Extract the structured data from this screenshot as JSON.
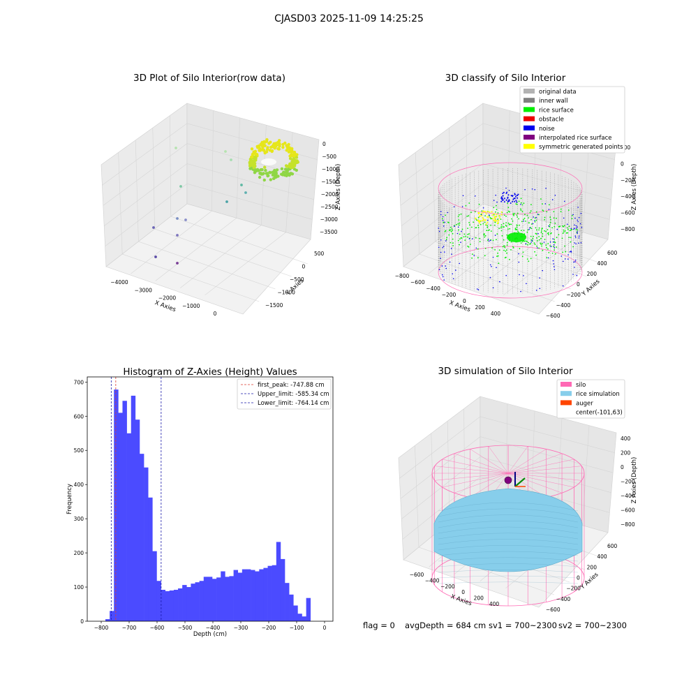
{
  "figure": {
    "title": "CJASD03 2025-11-09 14:25:25",
    "footer": {
      "flag": "flag = 0",
      "avg_depth": "avgDepth = 684 cm",
      "sv1": "sv1 = 700~2300",
      "sv2": "sv2 = 700~2300"
    }
  },
  "colors": {
    "histogram": "#4b4bff",
    "first_peak": "#dd3b2f",
    "limit_lines": "#1a1aaa",
    "original": "#b3b3b3",
    "inner_wall": "#808080",
    "rice_surface": "#00ee00",
    "obstacle": "#ee0000",
    "noise": "#0000ee",
    "interpolated": "#800080",
    "symmetric": "#ffff00",
    "silo": "#ff69b4",
    "rice_sim": "#87ceeb",
    "auger": "#ff4500"
  },
  "chart_data": [
    {
      "type": "scatter",
      "title": "3D Plot of Silo Interior(row data)",
      "xlabel": "X Axies",
      "ylabel": "Y Axies",
      "zlabel": "Z Axies (Depth)",
      "x_ticks": [
        "−4000",
        "−3000",
        "−2000",
        "−1000",
        "0"
      ],
      "y_ticks": [
        "500",
        "0",
        "−500",
        "−1000",
        "−1500"
      ],
      "z_ticks": [
        "0",
        "−500",
        "−1000",
        "−1500",
        "−2000",
        "−2500",
        "−3000",
        "−3500"
      ]
    },
    {
      "type": "scatter",
      "title": "3D classify of Silo Interior",
      "xlabel": "X Axies",
      "ylabel": "Y Axies",
      "zlabel": "Z Axies (Depth)",
      "x_ticks": [
        "−800",
        "−600",
        "−400",
        "−200",
        "0",
        "200",
        "400"
      ],
      "y_ticks": [
        "600",
        "400",
        "200",
        "0",
        "−200",
        "−400",
        "−600"
      ],
      "z_ticks": [
        "200",
        "0",
        "−200",
        "−400",
        "−600",
        "−800"
      ],
      "legend_position": "top-right",
      "legend": [
        {
          "label": "original data",
          "color": "#b3b3b3"
        },
        {
          "label": "inner wall",
          "color": "#808080"
        },
        {
          "label": "rice surface",
          "color": "#00ee00"
        },
        {
          "label": "obstacle",
          "color": "#ee0000"
        },
        {
          "label": "noise",
          "color": "#0000ee"
        },
        {
          "label": "interpolated rice surface",
          "color": "#800080"
        },
        {
          "label": "symmetric generated points",
          "color": "#ffff00"
        }
      ]
    },
    {
      "type": "bar",
      "title": "Histogram of Z-Axies (Height) Values",
      "xlabel": "Depth (cm)",
      "ylabel": "Frequency",
      "xlim": [
        -850,
        30
      ],
      "ylim": [
        0,
        715
      ],
      "x_ticks": [
        {
          "v": -800,
          "label": "−800"
        },
        {
          "v": -700,
          "label": "−700"
        },
        {
          "v": -600,
          "label": "−600"
        },
        {
          "v": -500,
          "label": "−500"
        },
        {
          "v": -400,
          "label": "−400"
        },
        {
          "v": -300,
          "label": "−300"
        },
        {
          "v": -200,
          "label": "−200"
        },
        {
          "v": -100,
          "label": "−100"
        },
        {
          "v": 0,
          "label": "0"
        }
      ],
      "y_ticks": [
        {
          "v": 0,
          "label": "0"
        },
        {
          "v": 100,
          "label": "100"
        },
        {
          "v": 200,
          "label": "200"
        },
        {
          "v": 300,
          "label": "300"
        },
        {
          "v": 400,
          "label": "400"
        },
        {
          "v": 500,
          "label": "500"
        },
        {
          "v": 600,
          "label": "600"
        },
        {
          "v": 700,
          "label": "700"
        }
      ],
      "bin_width": 15.3,
      "bin_start": -785,
      "values": [
        6,
        30,
        678,
        610,
        645,
        550,
        660,
        590,
        490,
        450,
        362,
        205,
        118,
        92,
        88,
        90,
        92,
        96,
        106,
        100,
        110,
        114,
        118,
        130,
        130,
        124,
        128,
        146,
        130,
        132,
        150,
        142,
        152,
        152,
        150,
        146,
        152,
        156,
        162,
        164,
        232,
        182,
        112,
        78,
        46,
        22,
        14,
        68
      ],
      "lines": [
        {
          "label": "first_peak: -747.88 cm",
          "x": -747.88,
          "color": "#dd3b2f"
        },
        {
          "label": "Upper_limit: -585.34 cm",
          "x": -585.34,
          "color": "#1a1aaa"
        },
        {
          "label": "Lower_limit: -764.14 cm",
          "x": -764.14,
          "color": "#1a1aaa"
        }
      ],
      "legend_position": "top-right"
    },
    {
      "type": "scatter",
      "title": "3D simulation of Silo Interior",
      "xlabel": "X Axies",
      "ylabel": "Y Axies",
      "zlabel": "Z Axies (Depth)",
      "x_ticks": [
        "−600",
        "−400",
        "−200",
        "0",
        "200",
        "400"
      ],
      "y_ticks": [
        "600",
        "400",
        "200",
        "0",
        "−200",
        "−400",
        "−600"
      ],
      "z_ticks": [
        "400",
        "200",
        "0",
        "−200",
        "−400",
        "−600",
        "−800"
      ],
      "legend_position": "top-right",
      "legend": [
        {
          "label": "silo",
          "color": "#ff69b4"
        },
        {
          "label": "rice simulation",
          "color": "#87ceeb"
        },
        {
          "label": "auger",
          "color": "#ff4500"
        },
        {
          "label": "center(-101,63)",
          "color": ""
        }
      ]
    }
  ]
}
